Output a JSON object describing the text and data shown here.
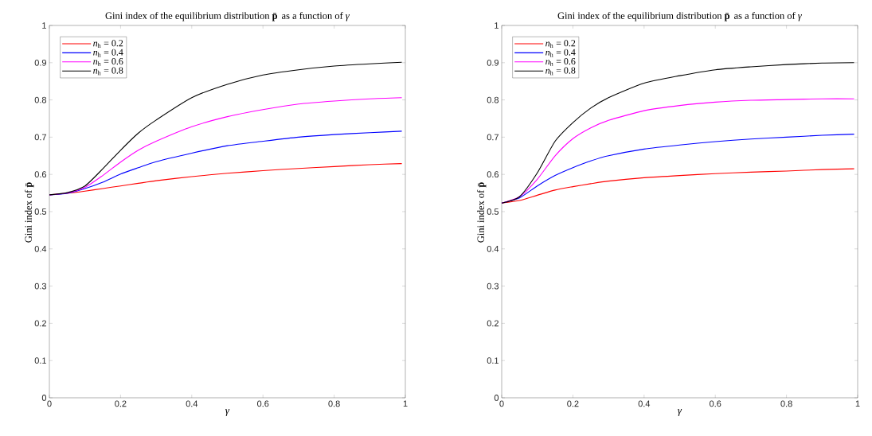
{
  "chart_data": [
    {
      "type": "line",
      "title": "Gini index of the equilibrium distribution **p̄** as a function of *γ*",
      "xlabel": "*γ*",
      "ylabel": "Gini index of **p̄**",
      "x": [
        0,
        0.05,
        0.1,
        0.15,
        0.2,
        0.25,
        0.3,
        0.4,
        0.5,
        0.6,
        0.7,
        0.8,
        0.9,
        0.99
      ],
      "series": [
        {
          "name": "*n*$_{h}$ = 0.2",
          "color": "#ff0000",
          "values": [
            0.545,
            0.549,
            0.555,
            0.562,
            0.569,
            0.576,
            0.583,
            0.594,
            0.603,
            0.61,
            0.616,
            0.621,
            0.626,
            0.629
          ]
        },
        {
          "name": "*n*$_{h}$ = 0.4",
          "color": "#0000ff",
          "values": [
            0.545,
            0.549,
            0.562,
            0.579,
            0.601,
            0.618,
            0.634,
            0.657,
            0.677,
            0.689,
            0.7,
            0.707,
            0.712,
            0.716
          ]
        },
        {
          "name": "*n*$_{h}$ = 0.6",
          "color": "#ff00ff",
          "values": [
            0.545,
            0.55,
            0.565,
            0.597,
            0.633,
            0.665,
            0.689,
            0.728,
            0.755,
            0.774,
            0.789,
            0.797,
            0.803,
            0.806
          ]
        },
        {
          "name": "*n*$_{h}$ = 0.8",
          "color": "#000000",
          "values": [
            0.545,
            0.551,
            0.569,
            0.615,
            0.665,
            0.711,
            0.746,
            0.806,
            0.842,
            0.867,
            0.881,
            0.891,
            0.897,
            0.901
          ]
        }
      ],
      "xlim": [
        0,
        1
      ],
      "ylim": [
        0,
        1
      ],
      "xticks": [
        0,
        0.2,
        0.4,
        0.6,
        0.8,
        1
      ],
      "yticks": [
        0,
        0.1,
        0.2,
        0.3,
        0.4,
        0.5,
        0.6,
        0.7,
        0.8,
        0.9,
        1
      ],
      "legend": "top left"
    },
    {
      "type": "line",
      "title": "Gini index of the equilibrium distribution **p̄** as a function of *γ*",
      "xlabel": "*γ*",
      "ylabel": "Gini index of **p̄**",
      "x": [
        0,
        0.05,
        0.1,
        0.15,
        0.2,
        0.25,
        0.3,
        0.4,
        0.5,
        0.6,
        0.7,
        0.8,
        0.9,
        0.99
      ],
      "series": [
        {
          "name": "*n*$_{h}$ = 0.2",
          "color": "#ff0000",
          "values": [
            0.523,
            0.53,
            0.544,
            0.558,
            0.567,
            0.575,
            0.582,
            0.591,
            0.597,
            0.602,
            0.606,
            0.609,
            0.613,
            0.615
          ]
        },
        {
          "name": "*n*$_{h}$ = 0.4",
          "color": "#0000ff",
          "values": [
            0.523,
            0.537,
            0.569,
            0.597,
            0.618,
            0.636,
            0.65,
            0.668,
            0.679,
            0.688,
            0.695,
            0.7,
            0.705,
            0.708
          ]
        },
        {
          "name": "*n*$_{h}$ = 0.6",
          "color": "#ff00ff",
          "values": [
            0.523,
            0.54,
            0.587,
            0.65,
            0.696,
            0.725,
            0.745,
            0.771,
            0.785,
            0.794,
            0.799,
            0.801,
            0.803,
            0.803
          ]
        },
        {
          "name": "*n*$_{h}$ = 0.8",
          "color": "#000000",
          "values": [
            0.523,
            0.54,
            0.604,
            0.689,
            0.739,
            0.778,
            0.806,
            0.845,
            0.865,
            0.881,
            0.889,
            0.895,
            0.899,
            0.9
          ]
        }
      ],
      "xlim": [
        0,
        1
      ],
      "ylim": [
        0,
        1
      ],
      "xticks": [
        0,
        0.2,
        0.4,
        0.6,
        0.8,
        1
      ],
      "yticks": [
        0,
        0.1,
        0.2,
        0.3,
        0.4,
        0.5,
        0.6,
        0.7,
        0.8,
        0.9,
        1
      ],
      "legend": "top left"
    }
  ]
}
